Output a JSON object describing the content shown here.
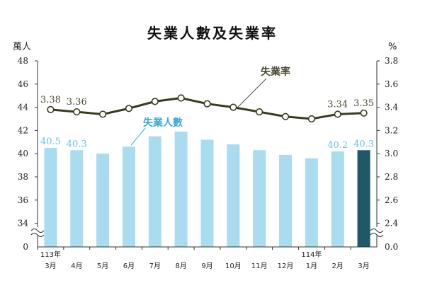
{
  "chart_data": {
    "type": "bar",
    "title": "失業人數及失業率",
    "left_axis_unit": "萬人",
    "right_axis_unit": "%",
    "left_ticks": [
      "48",
      "46",
      "44",
      "42",
      "40",
      "38",
      "36",
      "34",
      "0"
    ],
    "right_ticks": [
      "3.8",
      "3.6",
      "3.4",
      "3.2",
      "3.0",
      "2.8",
      "2.6",
      "2.4",
      "0.0"
    ],
    "left_ylim": [
      32,
      48
    ],
    "right_ylim": [
      2.2,
      3.8
    ],
    "axis_break": true,
    "categories": [
      "3月",
      "4月",
      "5月",
      "6月",
      "7月",
      "8月",
      "9月",
      "10月",
      "11月",
      "12月",
      "1月",
      "2月",
      "3月"
    ],
    "year_labels": [
      {
        "index": 0,
        "text": "113年"
      },
      {
        "index": 10,
        "text": "114年"
      }
    ],
    "series": [
      {
        "name": "失業人數",
        "kind": "bar",
        "axis": "left",
        "color": "#a9dcef",
        "highlight_color": "#1f5868",
        "highlight_index": 12,
        "values": [
          40.5,
          40.3,
          40.0,
          40.6,
          41.5,
          41.9,
          41.2,
          40.8,
          40.3,
          39.9,
          39.6,
          40.2,
          40.3
        ],
        "labels": {
          "0": "40.5",
          "1": "40.3",
          "11": "40.2",
          "12": "40.3"
        },
        "label_color": "#6cc3e6"
      },
      {
        "name": "失業率",
        "kind": "line",
        "axis": "right",
        "color": "#3b3a1f",
        "values": [
          3.38,
          3.36,
          3.34,
          3.39,
          3.45,
          3.48,
          3.43,
          3.4,
          3.36,
          3.32,
          3.3,
          3.34,
          3.35
        ],
        "labels": {
          "0": "3.38",
          "1": "3.36",
          "11": "3.34",
          "12": "3.35"
        },
        "label_color": "#4a4a30"
      }
    ]
  }
}
